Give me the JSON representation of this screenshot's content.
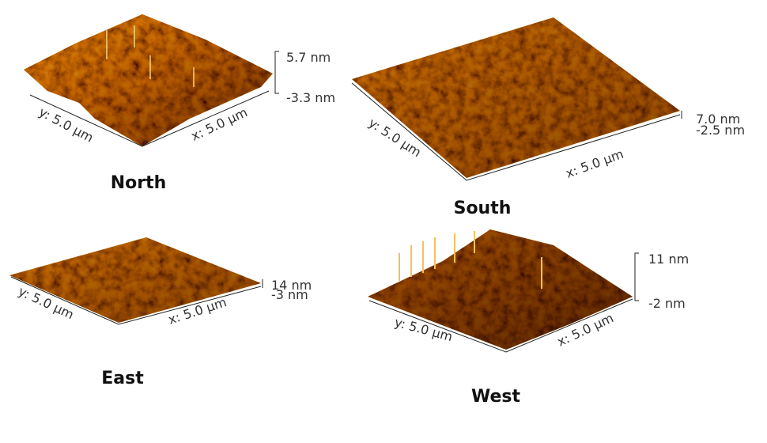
{
  "panels": [
    {
      "title": "North",
      "x_label": "x: 5.0 µm",
      "y_label": "y: 5.0 µm",
      "z_max": "5.7 nm",
      "z_min": "-3.3 nm"
    },
    {
      "title": "South",
      "x_label": "x: 5.0 µm",
      "y_label": "y: 5.0 µm",
      "z_max": "7.0 nm",
      "z_min": "-2.5 nm"
    },
    {
      "title": "East",
      "x_label": "x: 5.0 µm",
      "y_label": "y: 5.0 µm",
      "z_max": "14 nm",
      "z_min": "-3 nm"
    },
    {
      "title": "West",
      "x_label": "x: 5.0 µm",
      "y_label": "y: 5.0 µm",
      "z_max": "11 nm",
      "z_min": "-2 nm"
    }
  ]
}
